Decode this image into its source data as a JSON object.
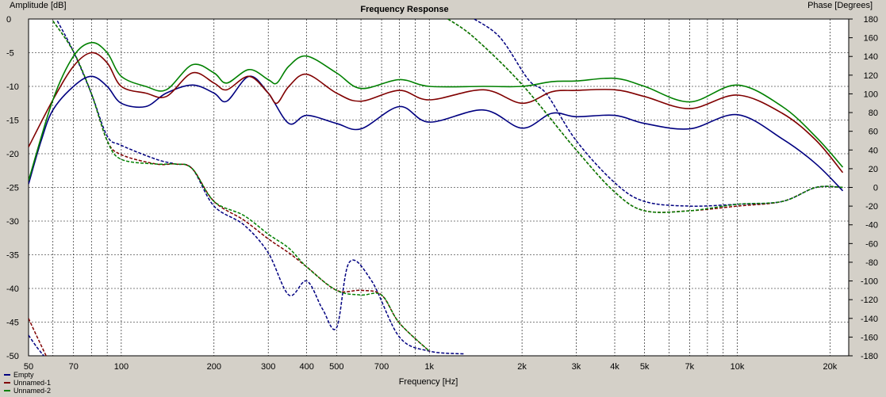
{
  "chart_data": {
    "type": "line",
    "title": "Frequency Response",
    "xlabel": "Frequency [Hz]",
    "ylabel": "Amplitude [dB]",
    "y2label": "Phase [Degrees]",
    "xscale": "log",
    "xlim": [
      50,
      23000
    ],
    "ylim": [
      -50,
      0
    ],
    "y2lim": [
      -180,
      180
    ],
    "grid": true,
    "legend_placement": "bottom-left",
    "x_ticks": [
      50,
      70,
      100,
      200,
      300,
      400,
      500,
      700,
      1000,
      2000,
      3000,
      4000,
      5000,
      7000,
      10000,
      20000
    ],
    "x_tick_labels": [
      "50",
      "70",
      "100",
      "200",
      "300",
      "400",
      "500",
      "700",
      "1k",
      "2k",
      "3k",
      "4k",
      "5k",
      "7k",
      "10k",
      "20k"
    ],
    "y_ticks": [
      0,
      -5,
      -10,
      -15,
      -20,
      -25,
      -30,
      -35,
      -40,
      -45,
      -50
    ],
    "y_tick_labels": [
      "0",
      "-5",
      "-10",
      "-15",
      "-20",
      "-25",
      "-30",
      "-35",
      "-40",
      "-45",
      "-50"
    ],
    "y2_ticks": [
      180,
      160,
      140,
      120,
      100,
      80,
      60,
      40,
      20,
      0,
      -20,
      -40,
      -60,
      -80,
      -100,
      -120,
      -140,
      -160,
      -180
    ],
    "y2_tick_labels": [
      "180",
      "160",
      "140",
      "120",
      "100",
      "80",
      "60",
      "40",
      "20",
      "0",
      "-20",
      "-40",
      "-60",
      "-80",
      "-100",
      "-120",
      "-140",
      "-160",
      "-180"
    ],
    "series": [
      {
        "name": "Empty",
        "color": "#000080",
        "amplitude": [
          [
            50,
            -24.5
          ],
          [
            55,
            -18
          ],
          [
            60,
            -13.5
          ],
          [
            70,
            -10
          ],
          [
            80,
            -8.5
          ],
          [
            90,
            -10
          ],
          [
            100,
            -12.5
          ],
          [
            120,
            -13
          ],
          [
            140,
            -11
          ],
          [
            170,
            -9.8
          ],
          [
            200,
            -11
          ],
          [
            220,
            -12.2
          ],
          [
            260,
            -8.5
          ],
          [
            300,
            -11
          ],
          [
            350,
            -15.5
          ],
          [
            400,
            -14.3
          ],
          [
            500,
            -15.5
          ],
          [
            600,
            -16.3
          ],
          [
            800,
            -13
          ],
          [
            1000,
            -15.3
          ],
          [
            1500,
            -13.5
          ],
          [
            2000,
            -16.2
          ],
          [
            2500,
            -14
          ],
          [
            3000,
            -14.5
          ],
          [
            4000,
            -14.3
          ],
          [
            5000,
            -15.5
          ],
          [
            7000,
            -16.3
          ],
          [
            10000,
            -14.2
          ],
          [
            14000,
            -17.8
          ],
          [
            18000,
            -21.5
          ],
          [
            22000,
            -25.5
          ]
        ],
        "phase": [
          [
            62,
            178
          ],
          [
            70,
            145
          ],
          [
            80,
            100
          ],
          [
            90,
            55
          ],
          [
            100,
            45
          ],
          [
            130,
            30
          ],
          [
            150,
            25
          ],
          [
            170,
            20
          ],
          [
            200,
            -20
          ],
          [
            250,
            -40
          ],
          [
            300,
            -70
          ],
          [
            350,
            -115
          ],
          [
            400,
            -100
          ],
          [
            450,
            -130
          ],
          [
            500,
            -150
          ],
          [
            550,
            -80
          ],
          [
            650,
            -100
          ],
          [
            800,
            -160
          ],
          [
            1000,
            -175
          ],
          [
            1300,
            -178
          ],
          [
            1400,
            180
          ],
          [
            1700,
            160
          ],
          [
            2100,
            115
          ],
          [
            2400,
            100
          ],
          [
            3000,
            50
          ],
          [
            4000,
            5
          ],
          [
            5000,
            -15
          ],
          [
            7000,
            -20
          ],
          [
            10000,
            -18
          ],
          [
            14000,
            -15
          ],
          [
            18000,
            0
          ],
          [
            22000,
            0
          ]
        ]
      },
      {
        "name": "Unnamed-1",
        "color": "#800000",
        "amplitude": [
          [
            50,
            -19
          ],
          [
            60,
            -12
          ],
          [
            70,
            -7
          ],
          [
            80,
            -5
          ],
          [
            90,
            -6.5
          ],
          [
            100,
            -10
          ],
          [
            120,
            -11
          ],
          [
            140,
            -11.5
          ],
          [
            170,
            -8
          ],
          [
            200,
            -9.5
          ],
          [
            220,
            -10.5
          ],
          [
            260,
            -8.5
          ],
          [
            300,
            -11
          ],
          [
            320,
            -12.5
          ],
          [
            350,
            -10
          ],
          [
            400,
            -8.2
          ],
          [
            500,
            -11
          ],
          [
            600,
            -12.2
          ],
          [
            800,
            -10.6
          ],
          [
            1000,
            -12
          ],
          [
            1500,
            -10.5
          ],
          [
            2000,
            -12.5
          ],
          [
            2500,
            -10.8
          ],
          [
            3000,
            -10.6
          ],
          [
            4000,
            -10.5
          ],
          [
            5000,
            -11.5
          ],
          [
            7000,
            -13.3
          ],
          [
            10000,
            -11.3
          ],
          [
            14000,
            -14
          ],
          [
            18000,
            -18
          ],
          [
            22000,
            -22.8
          ]
        ],
        "phase": [
          [
            60,
            178
          ],
          [
            70,
            145
          ],
          [
            80,
            100
          ],
          [
            90,
            50
          ],
          [
            100,
            35
          ],
          [
            130,
            25
          ],
          [
            150,
            25
          ],
          [
            170,
            20
          ],
          [
            200,
            -15
          ],
          [
            250,
            -35
          ],
          [
            300,
            -55
          ],
          [
            350,
            -70
          ],
          [
            400,
            -85
          ],
          [
            500,
            -110
          ],
          [
            600,
            -110
          ],
          [
            700,
            -115
          ],
          [
            800,
            -145
          ],
          [
            1000,
            -175
          ],
          [
            1150,
            180
          ],
          [
            1400,
            160
          ],
          [
            2000,
            110
          ],
          [
            3000,
            40
          ],
          [
            4000,
            -5
          ],
          [
            5000,
            -25
          ],
          [
            7000,
            -25
          ],
          [
            10000,
            -20
          ],
          [
            14000,
            -15
          ],
          [
            18000,
            0
          ],
          [
            22000,
            0
          ]
        ]
      },
      {
        "name": "Unnamed-2",
        "color": "#008000",
        "amplitude": [
          [
            50,
            -24
          ],
          [
            60,
            -12
          ],
          [
            70,
            -5.5
          ],
          [
            80,
            -3.5
          ],
          [
            90,
            -5
          ],
          [
            100,
            -8.5
          ],
          [
            120,
            -10
          ],
          [
            140,
            -10.5
          ],
          [
            170,
            -6.8
          ],
          [
            200,
            -8
          ],
          [
            220,
            -9.5
          ],
          [
            260,
            -7.5
          ],
          [
            300,
            -9
          ],
          [
            320,
            -9.5
          ],
          [
            350,
            -7
          ],
          [
            400,
            -5.5
          ],
          [
            500,
            -8
          ],
          [
            600,
            -10.3
          ],
          [
            800,
            -9
          ],
          [
            1000,
            -10
          ],
          [
            1500,
            -10
          ],
          [
            2000,
            -10
          ],
          [
            2500,
            -9.3
          ],
          [
            3000,
            -9.2
          ],
          [
            4000,
            -8.8
          ],
          [
            5000,
            -10
          ],
          [
            7000,
            -12.3
          ],
          [
            10000,
            -9.8
          ],
          [
            14000,
            -13
          ],
          [
            18000,
            -17.5
          ],
          [
            22000,
            -22
          ]
        ],
        "phase": [
          [
            60,
            178
          ],
          [
            70,
            145
          ],
          [
            80,
            100
          ],
          [
            90,
            50
          ],
          [
            100,
            30
          ],
          [
            130,
            25
          ],
          [
            150,
            25
          ],
          [
            170,
            20
          ],
          [
            200,
            -15
          ],
          [
            250,
            -30
          ],
          [
            300,
            -50
          ],
          [
            350,
            -65
          ],
          [
            400,
            -85
          ],
          [
            500,
            -110
          ],
          [
            600,
            -115
          ],
          [
            700,
            -115
          ],
          [
            800,
            -145
          ],
          [
            1000,
            -175
          ],
          [
            1150,
            180
          ],
          [
            1400,
            160
          ],
          [
            2000,
            110
          ],
          [
            3000,
            40
          ],
          [
            4000,
            -5
          ],
          [
            5000,
            -25
          ],
          [
            7000,
            -25
          ],
          [
            10000,
            -18
          ],
          [
            14000,
            -15
          ],
          [
            18000,
            0
          ],
          [
            22000,
            0
          ]
        ]
      }
    ],
    "low_phase_fragments": [
      {
        "name": "Empty",
        "color": "#000080",
        "phase": [
          [
            50,
            -158
          ],
          [
            53,
            -170
          ],
          [
            56,
            -180
          ]
        ]
      },
      {
        "name": "Unnamed-1",
        "color": "#800000",
        "phase": [
          [
            50,
            -140
          ],
          [
            53,
            -158
          ],
          [
            57,
            -180
          ]
        ]
      }
    ]
  }
}
